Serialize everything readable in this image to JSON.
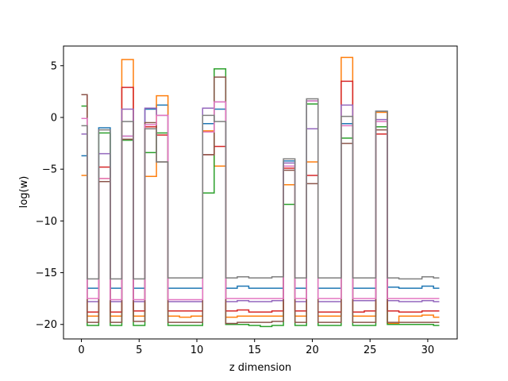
{
  "chart_data": {
    "type": "line",
    "title": "",
    "xlabel": "z dimension",
    "ylabel": "log(w)",
    "xlim": [
      -1.55,
      32.55
    ],
    "ylim": [
      -21.4,
      6.9
    ],
    "xticks": [
      0,
      5,
      10,
      15,
      20,
      25,
      30
    ],
    "yticks": [
      5,
      0,
      -5,
      -10,
      -15,
      -20
    ],
    "grid": false,
    "legend": "none",
    "drawstyle": "steps-mid",
    "x": [
      0,
      1,
      2,
      3,
      4,
      5,
      6,
      7,
      8,
      9,
      10,
      11,
      12,
      13,
      14,
      15,
      16,
      17,
      18,
      19,
      20,
      21,
      22,
      23,
      24,
      25,
      26,
      27,
      28,
      29,
      30,
      31
    ],
    "series": [
      {
        "color": "#1f77b4",
        "values": [
          -3.7,
          -16.5,
          -1.0,
          -16.5,
          -1.8,
          -16.5,
          0.8,
          1.2,
          -16.5,
          -16.5,
          -16.5,
          -0.6,
          0.8,
          -16.5,
          -16.3,
          -16.5,
          -16.5,
          -16.5,
          -4.2,
          -16.5,
          1.6,
          -16.5,
          -16.5,
          -0.6,
          -16.5,
          -16.5,
          0.6,
          -16.4,
          -16.5,
          -16.5,
          -16.3,
          -16.5
        ]
      },
      {
        "color": "#ff7f0e",
        "values": [
          -5.6,
          -19.2,
          -5.9,
          -19.2,
          5.6,
          -19.2,
          -5.7,
          2.1,
          -19.2,
          -19.3,
          -19.2,
          -1.3,
          -4.7,
          -19.3,
          -19.2,
          -19.2,
          -19.2,
          -19.2,
          -6.5,
          -19.2,
          -4.3,
          -19.2,
          -19.2,
          5.8,
          -19.2,
          -19.2,
          0.5,
          -19.9,
          -19.2,
          -19.2,
          -19.1,
          -19.3
        ]
      },
      {
        "color": "#2ca02c",
        "values": [
          1.1,
          -20.1,
          -1.5,
          -20.1,
          -2.2,
          -20.1,
          -3.4,
          -1.5,
          -20.1,
          -20.1,
          -20.1,
          -7.3,
          4.7,
          -20.0,
          -20.0,
          -20.1,
          -20.2,
          -20.1,
          -8.4,
          -20.1,
          1.3,
          -20.1,
          -20.1,
          -2.0,
          -20.1,
          -20.1,
          -0.9,
          -20.0,
          -20.0,
          -20.0,
          -20.0,
          -20.1
        ]
      },
      {
        "color": "#d62728",
        "values": [
          2.2,
          -18.8,
          -4.8,
          -18.8,
          2.9,
          -18.7,
          -0.9,
          -1.7,
          -18.7,
          -18.7,
          -18.7,
          -3.6,
          -2.8,
          -18.7,
          -18.6,
          -18.8,
          -18.8,
          -18.7,
          -4.9,
          -18.7,
          -5.6,
          -18.8,
          -18.8,
          3.5,
          -18.8,
          -18.7,
          -1.6,
          -18.7,
          -18.8,
          -18.8,
          -18.7,
          -18.7
        ]
      },
      {
        "color": "#9467bd",
        "values": [
          -1.6,
          -17.8,
          -3.5,
          -17.8,
          0.8,
          -17.8,
          0.9,
          0.2,
          -17.8,
          -17.8,
          -17.8,
          0.9,
          1.5,
          -17.8,
          -17.7,
          -17.8,
          -17.8,
          -17.7,
          -4.4,
          -17.8,
          -1.1,
          -17.8,
          -17.8,
          1.2,
          -17.7,
          -17.7,
          -0.2,
          -17.7,
          -17.8,
          -17.8,
          -17.7,
          -17.8
        ]
      },
      {
        "color": "#8c564b",
        "values": [
          2.2,
          -19.8,
          -6.2,
          -19.8,
          -2.1,
          -19.7,
          -0.5,
          -4.3,
          -19.8,
          -19.8,
          -19.8,
          -3.6,
          3.9,
          -19.9,
          -19.8,
          -19.8,
          -19.8,
          -19.7,
          -5.1,
          -19.8,
          -6.4,
          -19.8,
          -19.8,
          -2.5,
          -19.8,
          -19.8,
          -1.2,
          -19.8,
          -19.8,
          -19.8,
          -19.8,
          -19.8
        ]
      },
      {
        "color": "#e377c2",
        "values": [
          -0.1,
          -17.5,
          -5.9,
          -17.6,
          -1.8,
          -17.6,
          -0.7,
          0.2,
          -17.6,
          -17.6,
          -17.6,
          -1.4,
          1.5,
          -17.5,
          -17.5,
          -17.5,
          -17.5,
          -17.5,
          -4.7,
          -17.5,
          1.6,
          -17.5,
          -17.5,
          -0.8,
          -17.5,
          -17.5,
          -0.4,
          -17.5,
          -17.5,
          -17.5,
          -17.5,
          -17.5
        ]
      },
      {
        "color": "#7f7f7f",
        "values": [
          -0.8,
          -15.6,
          -1.2,
          -15.6,
          -0.4,
          -15.6,
          -1.1,
          -4.3,
          -15.5,
          -15.5,
          -15.5,
          0.2,
          -0.4,
          -15.5,
          -15.4,
          -15.5,
          -15.5,
          -15.4,
          -4.0,
          -15.5,
          1.8,
          -15.5,
          -15.5,
          0.1,
          -15.5,
          -15.5,
          0.6,
          -15.5,
          -15.6,
          -15.6,
          -15.4,
          -15.5
        ]
      }
    ]
  }
}
